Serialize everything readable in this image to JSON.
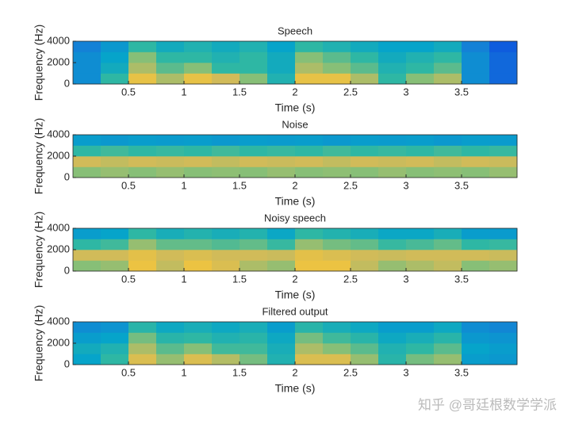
{
  "chart_data": [
    {
      "type": "spectrogram",
      "title": "Speech",
      "xlabel": "Time (s)",
      "ylabel": "Frequency (Hz)",
      "xlim": [
        0,
        4
      ],
      "xticks": [
        0.5,
        1,
        1.5,
        2,
        2.5,
        3,
        3.5
      ],
      "ylim": [
        0,
        4000
      ],
      "yticks": [
        0,
        2000,
        4000
      ],
      "colormap": "parula",
      "xbins": [
        0,
        0.25,
        0.5,
        0.75,
        1,
        1.25,
        1.5,
        1.75,
        2,
        2.25,
        2.5,
        2.75,
        3,
        3.25,
        3.5,
        3.75,
        4
      ],
      "ybins": [
        0,
        1000,
        2000,
        3000,
        4000
      ],
      "values": [
        [
          0.35,
          0.6,
          0.85,
          0.75,
          0.85,
          0.8,
          0.7,
          0.55,
          0.85,
          0.85,
          0.75,
          0.6,
          0.7,
          0.75,
          0.35,
          0.2
        ],
        [
          0.35,
          0.5,
          0.75,
          0.65,
          0.7,
          0.6,
          0.6,
          0.5,
          0.75,
          0.7,
          0.65,
          0.55,
          0.6,
          0.65,
          0.35,
          0.2
        ],
        [
          0.35,
          0.45,
          0.7,
          0.6,
          0.6,
          0.55,
          0.6,
          0.5,
          0.7,
          0.65,
          0.6,
          0.5,
          0.55,
          0.6,
          0.35,
          0.2
        ],
        [
          0.3,
          0.4,
          0.6,
          0.5,
          0.55,
          0.5,
          0.55,
          0.45,
          0.6,
          0.55,
          0.5,
          0.45,
          0.45,
          0.5,
          0.3,
          0.15
        ]
      ]
    },
    {
      "type": "spectrogram",
      "title": "Noise",
      "xlabel": "Time (s)",
      "ylabel": "Frequency (Hz)",
      "xlim": [
        0,
        4
      ],
      "xticks": [
        0.5,
        1,
        1.5,
        2,
        2.5,
        3,
        3.5
      ],
      "ylim": [
        0,
        4000
      ],
      "yticks": [
        0,
        2000,
        4000
      ],
      "colormap": "parula",
      "xbins": [
        0,
        0.25,
        0.5,
        0.75,
        1,
        1.25,
        1.5,
        1.75,
        2,
        2.25,
        2.5,
        2.75,
        3,
        3.25,
        3.5,
        3.75,
        4
      ],
      "ybins": [
        0,
        1000,
        2000,
        3000,
        4000
      ],
      "values": [
        [
          0.7,
          0.72,
          0.7,
          0.72,
          0.7,
          0.71,
          0.7,
          0.72,
          0.7,
          0.71,
          0.7,
          0.72,
          0.7,
          0.71,
          0.7,
          0.72
        ],
        [
          0.8,
          0.78,
          0.8,
          0.79,
          0.8,
          0.78,
          0.8,
          0.79,
          0.8,
          0.78,
          0.8,
          0.79,
          0.8,
          0.78,
          0.8,
          0.79
        ],
        [
          0.6,
          0.62,
          0.6,
          0.61,
          0.6,
          0.62,
          0.6,
          0.61,
          0.6,
          0.62,
          0.6,
          0.61,
          0.6,
          0.62,
          0.6,
          0.61
        ],
        [
          0.42,
          0.4,
          0.42,
          0.41,
          0.42,
          0.4,
          0.42,
          0.41,
          0.42,
          0.4,
          0.42,
          0.41,
          0.42,
          0.4,
          0.42,
          0.41
        ]
      ]
    },
    {
      "type": "spectrogram",
      "title": "Noisy speech",
      "xlabel": "Time (s)",
      "ylabel": "Frequency (Hz)",
      "xlim": [
        0,
        4
      ],
      "xticks": [
        0.5,
        1,
        1.5,
        2,
        2.5,
        3,
        3.5
      ],
      "ylim": [
        0,
        4000
      ],
      "yticks": [
        0,
        2000,
        4000
      ],
      "colormap": "parula",
      "xbins": [
        0,
        0.25,
        0.5,
        0.75,
        1,
        1.25,
        1.5,
        1.75,
        2,
        2.25,
        2.5,
        2.75,
        3,
        3.25,
        3.5,
        3.75,
        4
      ],
      "ybins": [
        0,
        1000,
        2000,
        3000,
        4000
      ],
      "values": [
        [
          0.7,
          0.72,
          0.86,
          0.78,
          0.86,
          0.82,
          0.75,
          0.72,
          0.86,
          0.86,
          0.78,
          0.72,
          0.75,
          0.78,
          0.7,
          0.72
        ],
        [
          0.8,
          0.8,
          0.84,
          0.8,
          0.82,
          0.8,
          0.8,
          0.79,
          0.84,
          0.82,
          0.8,
          0.79,
          0.8,
          0.8,
          0.8,
          0.79
        ],
        [
          0.6,
          0.62,
          0.72,
          0.66,
          0.66,
          0.64,
          0.66,
          0.61,
          0.72,
          0.68,
          0.66,
          0.61,
          0.63,
          0.66,
          0.6,
          0.61
        ],
        [
          0.42,
          0.45,
          0.6,
          0.52,
          0.56,
          0.52,
          0.56,
          0.47,
          0.6,
          0.56,
          0.52,
          0.47,
          0.47,
          0.52,
          0.42,
          0.41
        ]
      ]
    },
    {
      "type": "spectrogram",
      "title": "Filtered output",
      "xlabel": "Time (s)",
      "ylabel": "Frequency (Hz)",
      "xlim": [
        0,
        4
      ],
      "xticks": [
        0.5,
        1,
        1.5,
        2,
        2.5,
        3,
        3.5
      ],
      "ylim": [
        0,
        4000
      ],
      "yticks": [
        0,
        2000,
        4000
      ],
      "colormap": "parula",
      "xbins": [
        0,
        0.25,
        0.5,
        0.75,
        1,
        1.25,
        1.5,
        1.75,
        2,
        2.25,
        2.5,
        2.75,
        3,
        3.25,
        3.5,
        3.75,
        4
      ],
      "ybins": [
        0,
        1000,
        2000,
        3000,
        4000
      ],
      "values": [
        [
          0.45,
          0.6,
          0.82,
          0.72,
          0.82,
          0.76,
          0.68,
          0.55,
          0.82,
          0.82,
          0.72,
          0.58,
          0.68,
          0.72,
          0.42,
          0.4
        ],
        [
          0.5,
          0.55,
          0.75,
          0.65,
          0.7,
          0.62,
          0.62,
          0.52,
          0.75,
          0.7,
          0.65,
          0.55,
          0.6,
          0.65,
          0.45,
          0.42
        ],
        [
          0.42,
          0.45,
          0.68,
          0.58,
          0.6,
          0.55,
          0.58,
          0.48,
          0.68,
          0.62,
          0.58,
          0.48,
          0.52,
          0.58,
          0.4,
          0.38
        ],
        [
          0.35,
          0.38,
          0.58,
          0.48,
          0.52,
          0.48,
          0.52,
          0.42,
          0.58,
          0.52,
          0.48,
          0.42,
          0.42,
          0.48,
          0.35,
          0.32
        ]
      ]
    }
  ],
  "watermark": "知乎 @哥廷根数学学派"
}
